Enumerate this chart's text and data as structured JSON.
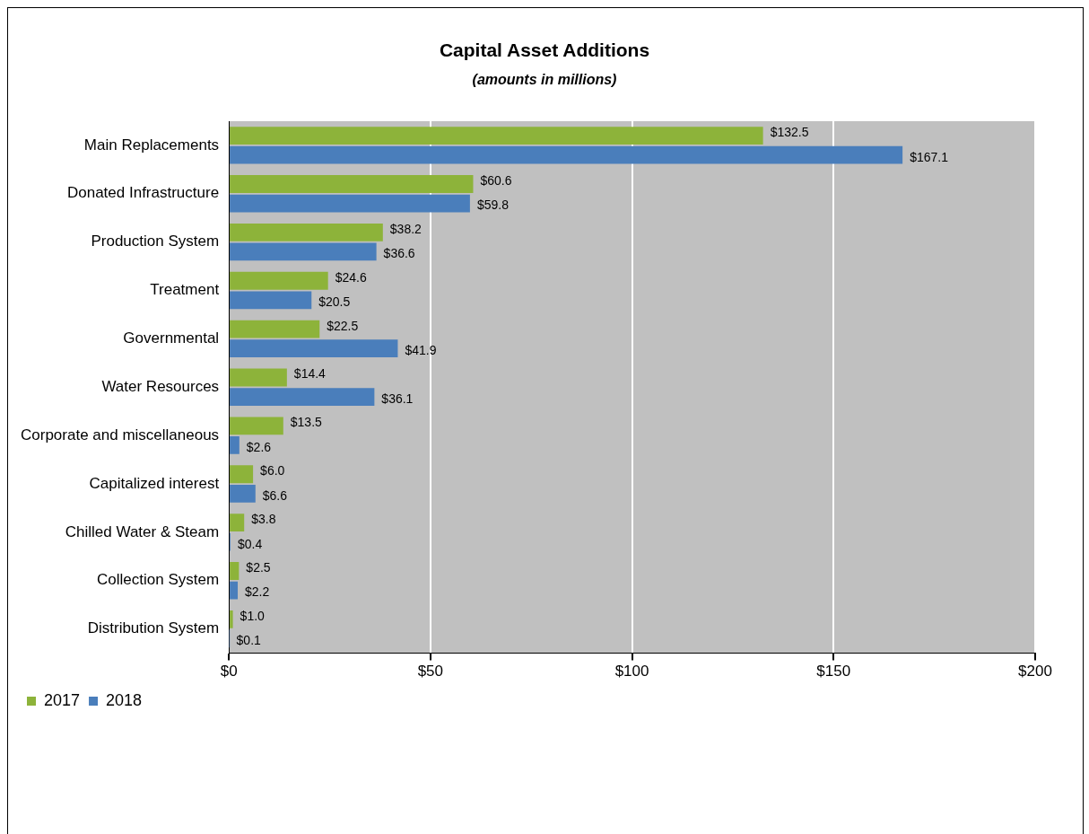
{
  "chart_data": {
    "type": "bar",
    "orientation": "horizontal",
    "title": "Capital Asset Additions",
    "subtitle": "(amounts in millions)",
    "categories": [
      "Main Replacements",
      "Donated Infrastructure",
      "Production System",
      "Treatment",
      "Governmental",
      "Water Resources",
      "Corporate and miscellaneous",
      "Capitalized interest",
      "Chilled Water & Steam",
      "Collection System",
      "Distribution System"
    ],
    "series": [
      {
        "name": "2017",
        "color": "#8db33a",
        "values": [
          132.5,
          60.6,
          38.2,
          24.6,
          22.5,
          14.4,
          13.5,
          6.0,
          3.8,
          2.5,
          1.0
        ],
        "value_labels": [
          "$132.5",
          "$60.6",
          "$38.2",
          "$24.6",
          "$22.5",
          "$14.4",
          "$13.5",
          "$6.0",
          "$3.8",
          "$2.5",
          "$1.0"
        ]
      },
      {
        "name": "2018",
        "color": "#4a7ebb",
        "values": [
          167.1,
          59.8,
          36.6,
          20.5,
          41.9,
          36.1,
          2.6,
          6.6,
          0.4,
          2.2,
          0.1
        ],
        "value_labels": [
          "$167.1",
          "$59.8",
          "$36.6",
          "$20.5",
          "$41.9",
          "$36.1",
          "$2.6",
          "$6.6",
          "$0.4",
          "$2.2",
          "$0.1"
        ]
      }
    ],
    "xlim": [
      0,
      200
    ],
    "xticks": [
      {
        "value": 0,
        "label": "$0"
      },
      {
        "value": 50,
        "label": "$50"
      },
      {
        "value": 100,
        "label": "$100"
      },
      {
        "value": 150,
        "label": "$150"
      },
      {
        "value": 200,
        "label": "$200"
      }
    ],
    "grid": "x",
    "legend": "bottom left"
  }
}
